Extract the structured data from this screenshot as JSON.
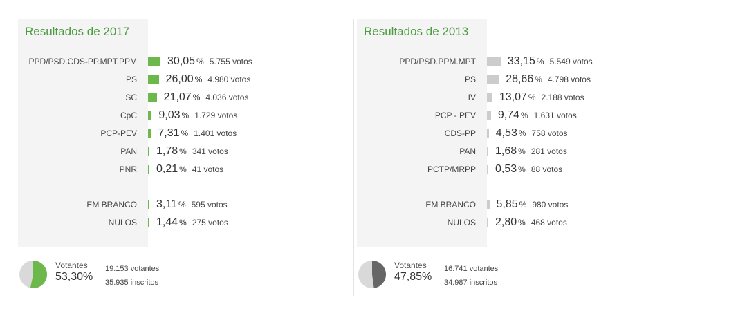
{
  "panels": [
    {
      "title": "Resultados de 2017",
      "bar_color": "#6cb84a",
      "rows": [
        {
          "party": "PPD/PSD.CDS-PP.MPT.PPM",
          "pct": "30,05",
          "votes": "5.755 votos",
          "value": 30.05
        },
        {
          "party": "PS",
          "pct": "26,00",
          "votes": "4.980 votos",
          "value": 26.0
        },
        {
          "party": "SC",
          "pct": "21,07",
          "votes": "4.036 votos",
          "value": 21.07
        },
        {
          "party": "CpC",
          "pct": "9,03",
          "votes": "1.729 votos",
          "value": 9.03
        },
        {
          "party": "PCP-PEV",
          "pct": "7,31",
          "votes": "1.401 votos",
          "value": 7.31
        },
        {
          "party": "PAN",
          "pct": "1,78",
          "votes": "341 votos",
          "value": 1.78
        },
        {
          "party": "PNR",
          "pct": "0,21",
          "votes": "41 votos",
          "value": 0.21
        },
        {
          "party": "EM BRANCO",
          "pct": "3,11",
          "votes": "595 votos",
          "value": 3.11
        },
        {
          "party": "NULOS",
          "pct": "1,44",
          "votes": "275 votos",
          "value": 1.44
        }
      ],
      "summary": {
        "label": "Votantes",
        "pct": "53,30%",
        "value": 53.3,
        "pie_color": "#6cb84a",
        "line1": "19.153 votantes",
        "line2": "35.935 inscritos"
      }
    },
    {
      "title": "Resultados de 2013",
      "bar_color": "#cccccc",
      "rows": [
        {
          "party": "PPD/PSD.PPM.MPT",
          "pct": "33,15",
          "votes": "5.549 votos",
          "value": 33.15
        },
        {
          "party": "PS",
          "pct": "28,66",
          "votes": "4.798 votos",
          "value": 28.66
        },
        {
          "party": "IV",
          "pct": "13,07",
          "votes": "2.188 votos",
          "value": 13.07
        },
        {
          "party": "PCP - PEV",
          "pct": "9,74",
          "votes": "1.631 votos",
          "value": 9.74
        },
        {
          "party": "CDS-PP",
          "pct": "4,53",
          "votes": "758 votos",
          "value": 4.53
        },
        {
          "party": "PAN",
          "pct": "1,68",
          "votes": "281 votos",
          "value": 1.68
        },
        {
          "party": "PCTP/MRPP",
          "pct": "0,53",
          "votes": "88 votos",
          "value": 0.53
        },
        {
          "party": "EM BRANCO",
          "pct": "5,85",
          "votes": "980 votos",
          "value": 5.85
        },
        {
          "party": "NULOS",
          "pct": "2,80",
          "votes": "468 votos",
          "value": 2.8
        }
      ],
      "summary": {
        "label": "Votantes",
        "pct": "47,85%",
        "value": 47.85,
        "pie_color": "#666666",
        "line1": "16.741 votantes",
        "line2": "34.987 inscritos"
      }
    }
  ],
  "chart_data": [
    {
      "type": "bar",
      "title": "Resultados de 2017",
      "categories": [
        "PPD/PSD.CDS-PP.MPT.PPM",
        "PS",
        "SC",
        "CpC",
        "PCP-PEV",
        "PAN",
        "PNR",
        "EM BRANCO",
        "NULOS"
      ],
      "values": [
        30.05,
        26.0,
        21.07,
        9.03,
        7.31,
        1.78,
        0.21,
        3.11,
        1.44
      ],
      "votes": [
        5755,
        4980,
        4036,
        1729,
        1401,
        341,
        41,
        595,
        275
      ]
    },
    {
      "type": "bar",
      "title": "Resultados de 2013",
      "categories": [
        "PPD/PSD.PPM.MPT",
        "PS",
        "IV",
        "PCP - PEV",
        "CDS-PP",
        "PAN",
        "PCTP/MRPP",
        "EM BRANCO",
        "NULOS"
      ],
      "values": [
        33.15,
        28.66,
        13.07,
        9.74,
        4.53,
        1.68,
        0.53,
        5.85,
        2.8
      ],
      "votes": [
        5549,
        4798,
        2188,
        1631,
        758,
        281,
        88,
        980,
        468
      ]
    },
    {
      "type": "pie",
      "title": "Votantes",
      "categories": [
        "2017",
        "2013"
      ],
      "values": [
        53.3,
        47.85
      ]
    }
  ]
}
